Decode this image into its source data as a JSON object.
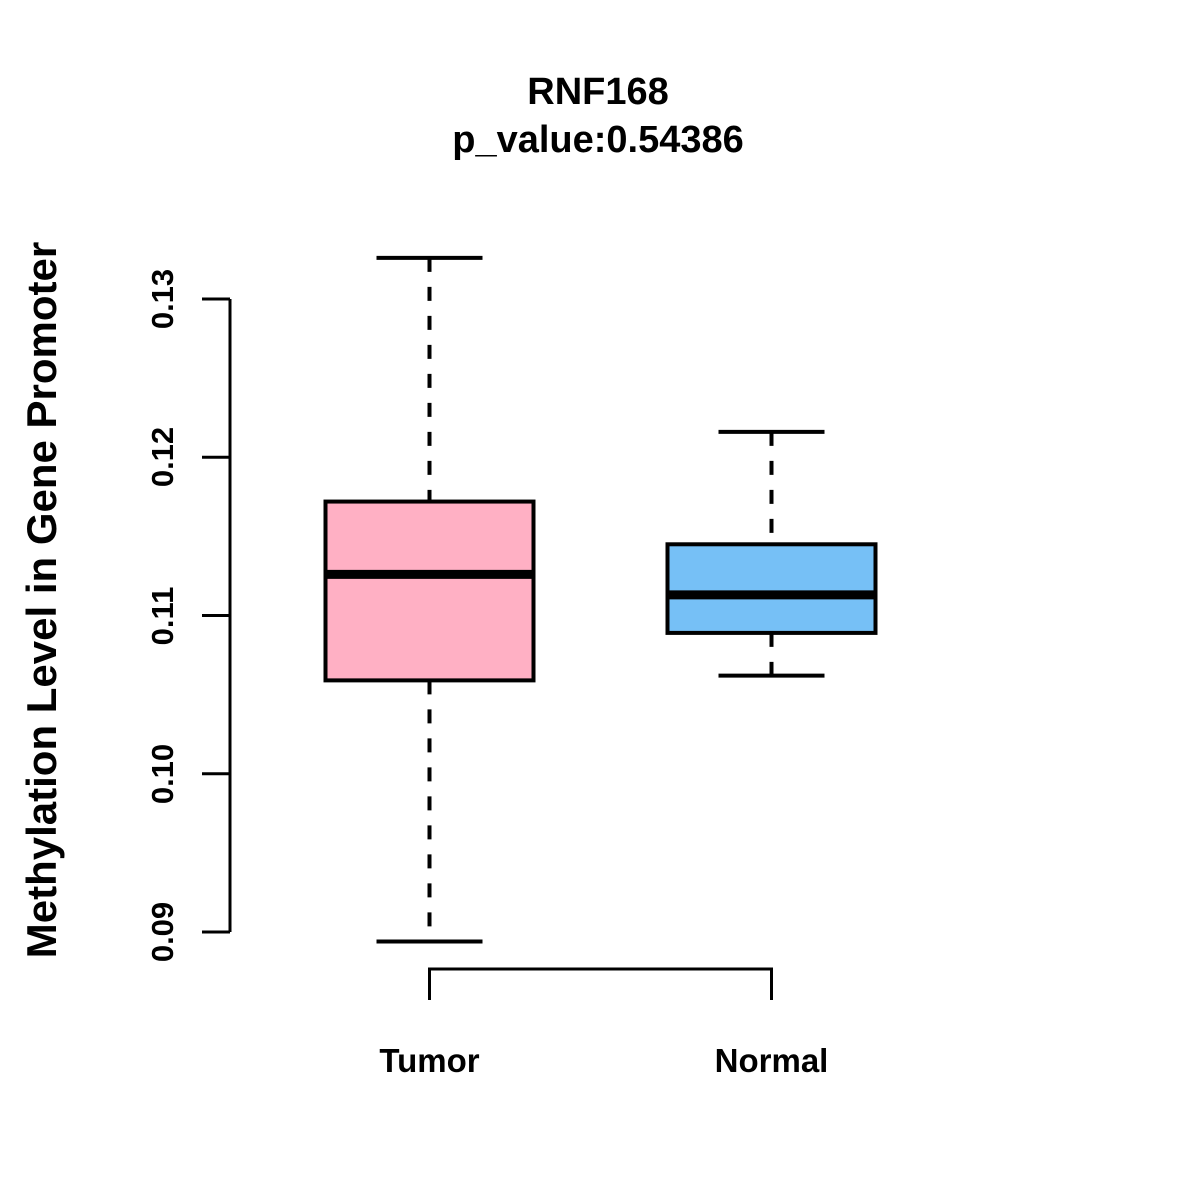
{
  "chart_data": {
    "type": "boxplot",
    "title": "RNF168",
    "subtitle": "p_value:0.54386",
    "ylabel": "Methylation Level in Gene Promoter",
    "xlabel": "",
    "categories": [
      "Tumor",
      "Normal"
    ],
    "ytick_labels": [
      "0.09",
      "0.10",
      "0.11",
      "0.12",
      "0.13"
    ],
    "yticks": [
      0.09,
      0.1,
      0.11,
      0.12,
      0.13
    ],
    "ylim": [
      0.0894,
      0.1326
    ],
    "grid": false,
    "legend": "none",
    "whisker_style": "dashed",
    "series": [
      {
        "name": "Tumor",
        "lower_whisker": 0.0894,
        "q1": 0.1059,
        "median": 0.1126,
        "q3": 0.1172,
        "upper_whisker": 0.1326,
        "fill_color": "#FFB0C4"
      },
      {
        "name": "Normal",
        "lower_whisker": 0.1062,
        "q1": 0.1089,
        "median": 0.1113,
        "q3": 0.1145,
        "upper_whisker": 0.1216,
        "fill_color": "#76C0F6"
      }
    ],
    "stroke_color": "#000000",
    "background_color": "#FFFFFF"
  }
}
